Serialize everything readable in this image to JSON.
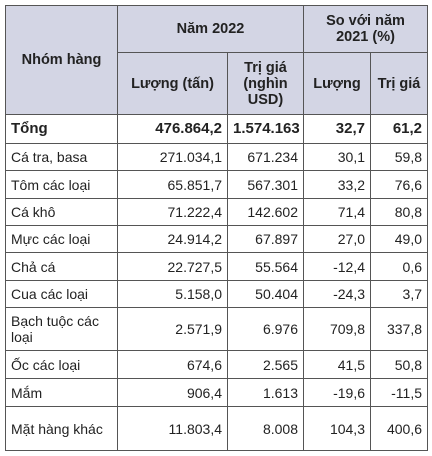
{
  "table": {
    "header": {
      "group": "Nhóm hàng",
      "year": "Năm 2022",
      "compare": "So với năm 2021 (%)",
      "sub": [
        "Lượng (tấn)",
        "Trị giá (nghìn USD)",
        "Lượng",
        "Trị giá"
      ]
    },
    "rows": [
      [
        "Tổng",
        "476.864,2",
        "1.574.163",
        "32,7",
        "61,2"
      ],
      [
        "Cá tra, basa",
        "271.034,1",
        "671.234",
        "30,1",
        "59,8"
      ],
      [
        "Tôm các loại",
        "65.851,7",
        "567.301",
        "33,2",
        "76,6"
      ],
      [
        "Cá khô",
        "71.222,4",
        "142.602",
        "71,4",
        "80,8"
      ],
      [
        "Mực các loại",
        "24.914,2",
        "67.897",
        "27,0",
        "49,0"
      ],
      [
        "Chả cá",
        "22.727,5",
        "55.564",
        "-12,4",
        "0,6"
      ],
      [
        "Cua các loại",
        "5.158,0",
        "50.404",
        "-24,3",
        "3,7"
      ],
      [
        "Bạch tuộc các loại",
        "2.571,9",
        "6.976",
        "709,8",
        "337,8"
      ],
      [
        "Ốc các loại",
        "674,6",
        "2.565",
        "41,5",
        "50,8"
      ],
      [
        "Mắm",
        "906,4",
        "1.613",
        "-19,6",
        "-11,5"
      ],
      [
        "Mặt hàng khác",
        "11.803,4",
        "8.008",
        "104,3",
        "400,6"
      ]
    ]
  }
}
